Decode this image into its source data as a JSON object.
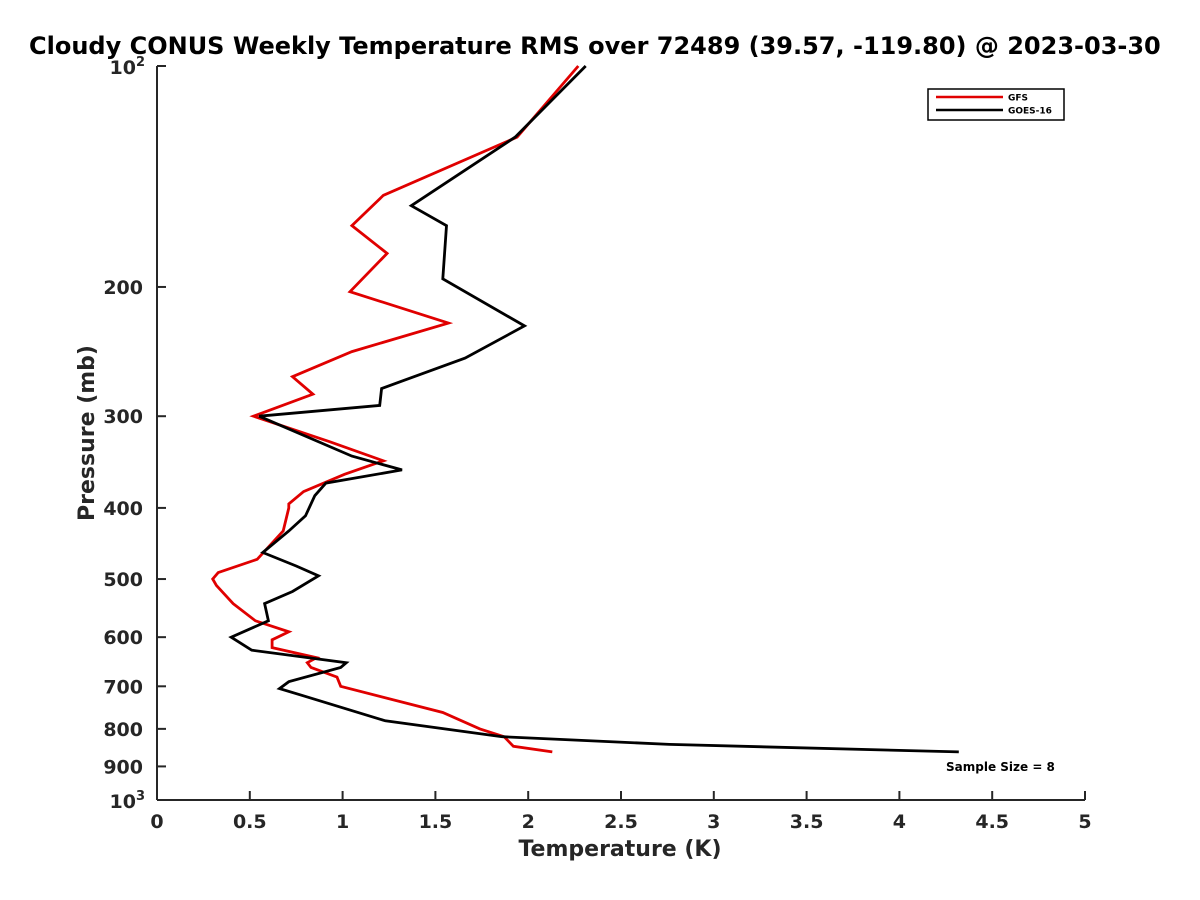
{
  "chart_data": {
    "type": "line",
    "title": "Cloudy CONUS Weekly Temperature RMS over 72489 (39.57, -119.80) @ 2023-03-30",
    "xlabel": "Temperature (K)",
    "ylabel": "Pressure (mb)",
    "xlim": [
      0,
      5
    ],
    "ylim": [
      100,
      1000
    ],
    "y_scale": "log",
    "y_reversed": true,
    "x_ticks": [
      "0",
      "0.5",
      "1",
      "1.5",
      "2",
      "2.5",
      "3",
      "3.5",
      "4",
      "4.5",
      "5"
    ],
    "y_ticks": [
      {
        "value": 100,
        "base": "10",
        "exp": "2"
      },
      {
        "value": 200,
        "label": "200"
      },
      {
        "value": 300,
        "label": "300"
      },
      {
        "value": 400,
        "label": "400"
      },
      {
        "value": 500,
        "label": "500"
      },
      {
        "value": 600,
        "label": "600"
      },
      {
        "value": 700,
        "label": "700"
      },
      {
        "value": 800,
        "label": "800"
      },
      {
        "value": 900,
        "label": "900"
      },
      {
        "value": 1000,
        "base": "10",
        "exp": "3"
      }
    ],
    "grid": false,
    "legend_position": "top-right",
    "annotation": "Sample Size = 8",
    "series": [
      {
        "name": "GFS",
        "color": "#e00000",
        "x": [
          2.27,
          1.94,
          1.22,
          1.05,
          1.24,
          1.04,
          1.57,
          1.05,
          0.73,
          0.84,
          0.52,
          0.93,
          1.22,
          1.01,
          0.79,
          0.71,
          0.71,
          0.68,
          0.54,
          0.33,
          0.3,
          0.32,
          0.41,
          0.53,
          0.71,
          0.62,
          0.62,
          0.86,
          0.81,
          0.83,
          0.97,
          0.99,
          1.54,
          1.74,
          1.87,
          1.92,
          2.13
        ],
        "y": [
          100,
          125,
          150,
          165,
          180,
          203,
          224,
          245,
          265,
          280,
          300,
          325,
          345,
          360,
          380,
          395,
          400,
          430,
          470,
          490,
          500,
          510,
          540,
          570,
          590,
          605,
          620,
          640,
          650,
          660,
          680,
          700,
          760,
          800,
          820,
          845,
          860
        ]
      },
      {
        "name": "GOES-16",
        "color": "#000000",
        "x": [
          2.31,
          1.93,
          1.37,
          1.56,
          1.54,
          1.98,
          1.66,
          1.21,
          1.2,
          0.55,
          1.05,
          1.32,
          0.91,
          0.85,
          0.8,
          0.71,
          0.57,
          0.75,
          0.87,
          0.73,
          0.58,
          0.6,
          0.4,
          0.51,
          1.02,
          0.99,
          0.71,
          0.66,
          0.78,
          1.23,
          1.86,
          2.76,
          4.32
        ],
        "y": [
          100,
          125,
          155,
          165,
          195,
          226,
          250,
          275,
          290,
          300,
          340,
          355,
          370,
          385,
          410,
          430,
          460,
          480,
          495,
          520,
          540,
          570,
          600,
          625,
          650,
          660,
          690,
          705,
          720,
          780,
          820,
          840,
          860
        ]
      }
    ]
  }
}
